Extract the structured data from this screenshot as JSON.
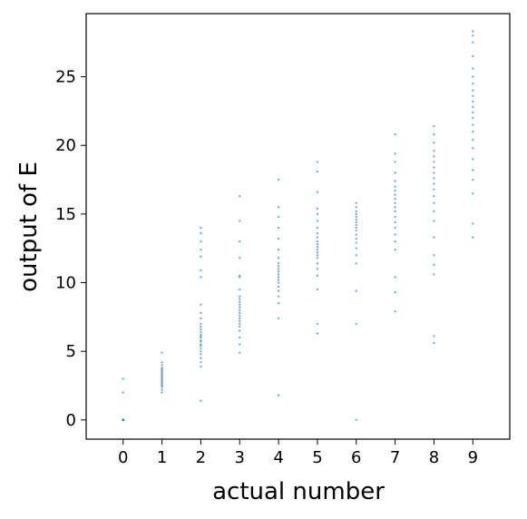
{
  "chart_data": {
    "type": "scatter",
    "title": "",
    "xlabel": "actual number",
    "ylabel": "output of E",
    "x_ticks": [
      0,
      1,
      2,
      3,
      4,
      5,
      6,
      7,
      8,
      9
    ],
    "y_ticks": [
      0,
      5,
      10,
      15,
      20,
      25
    ],
    "xlim": [
      -0.95,
      9.95
    ],
    "ylim": [
      -1.4,
      29.6
    ],
    "grid": false,
    "legend": "none",
    "point_color": "#1f77b4",
    "series": [
      {
        "points": [
          [
            0,
            0
          ],
          [
            0,
            0
          ],
          [
            0,
            0
          ],
          [
            0,
            0
          ],
          [
            0,
            0
          ],
          [
            0,
            0
          ],
          [
            0,
            0
          ],
          [
            0,
            0
          ],
          [
            0,
            0
          ],
          [
            0,
            0
          ],
          [
            0,
            2.0
          ],
          [
            0,
            3.0
          ],
          [
            1,
            2.0
          ],
          [
            1,
            2.2
          ],
          [
            1,
            2.4
          ],
          [
            1,
            2.5
          ],
          [
            1,
            2.6
          ],
          [
            1,
            2.7
          ],
          [
            1,
            2.8
          ],
          [
            1,
            2.9
          ],
          [
            1,
            3.0
          ],
          [
            1,
            3.1
          ],
          [
            1,
            3.2
          ],
          [
            1,
            3.3
          ],
          [
            1,
            3.4
          ],
          [
            1,
            3.5
          ],
          [
            1,
            3.6
          ],
          [
            1,
            3.7
          ],
          [
            1,
            3.8
          ],
          [
            1,
            4.0
          ],
          [
            1,
            4.2
          ],
          [
            1,
            4.9
          ],
          [
            2,
            1.4
          ],
          [
            2,
            3.9
          ],
          [
            2,
            4.2
          ],
          [
            2,
            4.5
          ],
          [
            2,
            4.8
          ],
          [
            2,
            5.0
          ],
          [
            2,
            5.2
          ],
          [
            2,
            5.4
          ],
          [
            2,
            5.5
          ],
          [
            2,
            5.7
          ],
          [
            2,
            5.8
          ],
          [
            2,
            6.0
          ],
          [
            2,
            6.1
          ],
          [
            2,
            6.2
          ],
          [
            2,
            6.4
          ],
          [
            2,
            6.6
          ],
          [
            2,
            6.8
          ],
          [
            2,
            7.0
          ],
          [
            2,
            7.4
          ],
          [
            2,
            7.8
          ],
          [
            2,
            8.4
          ],
          [
            2,
            10.4
          ],
          [
            2,
            10.9
          ],
          [
            2,
            11.9
          ],
          [
            2,
            12.4
          ],
          [
            2,
            13.0
          ],
          [
            2,
            13.6
          ],
          [
            2,
            14.0
          ],
          [
            3,
            4.9
          ],
          [
            3,
            5.5
          ],
          [
            3,
            6.0
          ],
          [
            3,
            6.5
          ],
          [
            3,
            6.8
          ],
          [
            3,
            7.0
          ],
          [
            3,
            7.2
          ],
          [
            3,
            7.4
          ],
          [
            3,
            7.6
          ],
          [
            3,
            7.8
          ],
          [
            3,
            8.0
          ],
          [
            3,
            8.2
          ],
          [
            3,
            8.4
          ],
          [
            3,
            8.6
          ],
          [
            3,
            8.8
          ],
          [
            3,
            9.0
          ],
          [
            3,
            9.5
          ],
          [
            3,
            10.4
          ],
          [
            3,
            10.5
          ],
          [
            3,
            11.8
          ],
          [
            3,
            13.0
          ],
          [
            3,
            14.5
          ],
          [
            3,
            16.3
          ],
          [
            4,
            1.8
          ],
          [
            4,
            7.4
          ],
          [
            4,
            8.5
          ],
          [
            4,
            9.0
          ],
          [
            4,
            9.4
          ],
          [
            4,
            9.7
          ],
          [
            4,
            10.0
          ],
          [
            4,
            10.2
          ],
          [
            4,
            10.4
          ],
          [
            4,
            10.6
          ],
          [
            4,
            10.8
          ],
          [
            4,
            11.0
          ],
          [
            4,
            11.2
          ],
          [
            4,
            11.4
          ],
          [
            4,
            11.8
          ],
          [
            4,
            12.4
          ],
          [
            4,
            13.2
          ],
          [
            4,
            14.0
          ],
          [
            4,
            14.8
          ],
          [
            4,
            15.5
          ],
          [
            4,
            17.5
          ],
          [
            5,
            6.3
          ],
          [
            5,
            7.0
          ],
          [
            5,
            9.5
          ],
          [
            5,
            10.5
          ],
          [
            5,
            11.0
          ],
          [
            5,
            11.4
          ],
          [
            5,
            11.8
          ],
          [
            5,
            12.0
          ],
          [
            5,
            12.2
          ],
          [
            5,
            12.4
          ],
          [
            5,
            12.6
          ],
          [
            5,
            12.8
          ],
          [
            5,
            13.0
          ],
          [
            5,
            13.3
          ],
          [
            5,
            13.6
          ],
          [
            5,
            14.0
          ],
          [
            5,
            14.5
          ],
          [
            5,
            15.0
          ],
          [
            5,
            15.4
          ],
          [
            5,
            16.6
          ],
          [
            5,
            18.1
          ],
          [
            5,
            18.8
          ],
          [
            6,
            0.0
          ],
          [
            6,
            7.0
          ],
          [
            6,
            9.4
          ],
          [
            6,
            11.4
          ],
          [
            6,
            12.0
          ],
          [
            6,
            12.5
          ],
          [
            6,
            12.9
          ],
          [
            6,
            13.2
          ],
          [
            6,
            13.5
          ],
          [
            6,
            13.8
          ],
          [
            6,
            14.0
          ],
          [
            6,
            14.2
          ],
          [
            6,
            14.4
          ],
          [
            6,
            14.6
          ],
          [
            6,
            14.8
          ],
          [
            6,
            15.0
          ],
          [
            6,
            15.2
          ],
          [
            6,
            15.5
          ],
          [
            6,
            15.8
          ],
          [
            7,
            7.9
          ],
          [
            7,
            9.3
          ],
          [
            7,
            10.4
          ],
          [
            7,
            12.4
          ],
          [
            7,
            13.0
          ],
          [
            7,
            13.5
          ],
          [
            7,
            14.0
          ],
          [
            7,
            14.4
          ],
          [
            7,
            14.8
          ],
          [
            7,
            15.2
          ],
          [
            7,
            15.5
          ],
          [
            7,
            15.8
          ],
          [
            7,
            16.1
          ],
          [
            7,
            16.4
          ],
          [
            7,
            16.7
          ],
          [
            7,
            17.0
          ],
          [
            7,
            17.4
          ],
          [
            7,
            18.0
          ],
          [
            7,
            18.8
          ],
          [
            7,
            19.4
          ],
          [
            7,
            20.8
          ],
          [
            8,
            5.6
          ],
          [
            8,
            6.1
          ],
          [
            8,
            10.6
          ],
          [
            8,
            11.3
          ],
          [
            8,
            12.0
          ],
          [
            8,
            13.3
          ],
          [
            8,
            14.5
          ],
          [
            8,
            15.2
          ],
          [
            8,
            15.8
          ],
          [
            8,
            16.3
          ],
          [
            8,
            16.8
          ],
          [
            8,
            17.2
          ],
          [
            8,
            17.6
          ],
          [
            8,
            18.0
          ],
          [
            8,
            18.4
          ],
          [
            8,
            18.8
          ],
          [
            8,
            19.2
          ],
          [
            8,
            19.6
          ],
          [
            8,
            20.2
          ],
          [
            8,
            20.8
          ],
          [
            8,
            21.4
          ],
          [
            9,
            13.3
          ],
          [
            9,
            14.3
          ],
          [
            9,
            16.5
          ],
          [
            9,
            17.5
          ],
          [
            9,
            18.2
          ],
          [
            9,
            19.0
          ],
          [
            9,
            19.8
          ],
          [
            9,
            20.4
          ],
          [
            9,
            21.0
          ],
          [
            9,
            21.5
          ],
          [
            9,
            22.0
          ],
          [
            9,
            22.4
          ],
          [
            9,
            22.8
          ],
          [
            9,
            23.2
          ],
          [
            9,
            23.6
          ],
          [
            9,
            24.0
          ],
          [
            9,
            24.5
          ],
          [
            9,
            25.0
          ],
          [
            9,
            25.6
          ],
          [
            9,
            26.5
          ],
          [
            9,
            27.5
          ],
          [
            9,
            28.0
          ],
          [
            9,
            28.3
          ]
        ]
      }
    ]
  }
}
